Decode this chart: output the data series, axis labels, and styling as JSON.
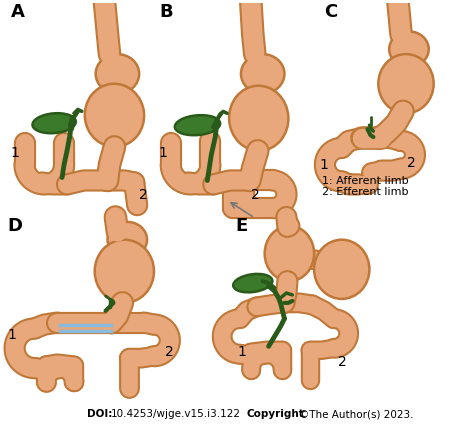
{
  "bg": "#ffffff",
  "skin": "#E8A87C",
  "skin_edge": "#C07838",
  "green_fill": "#3A7A2A",
  "green_edge": "#2A5A1A",
  "blue": "#88BBDD",
  "arrow_gray": "#888888",
  "doi_bold": "DOI:",
  "doi_num": " 10.4253/wjge.v15.i3.122 ",
  "copy_bold": "Copyright",
  "copy_rest": " ©The Author(s) 2023.",
  "leg1": "1: Afferent limb",
  "leg2": "2: Efferent limb",
  "figw": 4.74,
  "figh": 4.32,
  "dpi": 100
}
